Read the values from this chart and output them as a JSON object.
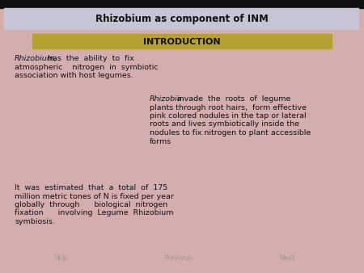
{
  "bg_color": "#d4aeae",
  "title_bar_color": "#c5c5d5",
  "title_text": "Rhizobium as component of INM",
  "title_fontsize": 8.5,
  "intro_bar_color": "#b5a030",
  "intro_text": "INTRODUCTION",
  "intro_fontsize": 8,
  "top_bar_color": "#111111",
  "nav_skip": "Skip",
  "nav_prev": "Previous",
  "nav_next": "Next",
  "nav_color": "#999999",
  "text_color": "#111111",
  "font_size": 6.8,
  "p1_lines": [
    [
      "Rhizobium,",
      " has  the  ability  to  fix"
    ],
    [
      "",
      "atmospheric    nitrogen  in  symbiotic"
    ],
    [
      "",
      "association with host legumes."
    ]
  ],
  "p2_lines": [
    [
      "Rhizobia",
      " invade  the  roots  of  legume"
    ],
    [
      "",
      "plants through root hairs,  form effective"
    ],
    [
      "",
      "pink colored nodules in the tap or lateral"
    ],
    [
      "",
      "roots and lives symbiotically inside the"
    ],
    [
      "",
      "nodules to fix nitrogen to plant accessible"
    ],
    [
      "",
      "forms"
    ]
  ],
  "p3_lines": [
    "It  was  estimated  that  a  total  of  175",
    "million metric tones of N is fixed per year",
    "globally  through      biological  nitrogen",
    "fixation      involving  Legume  Rhizobium",
    "symbiosis."
  ]
}
